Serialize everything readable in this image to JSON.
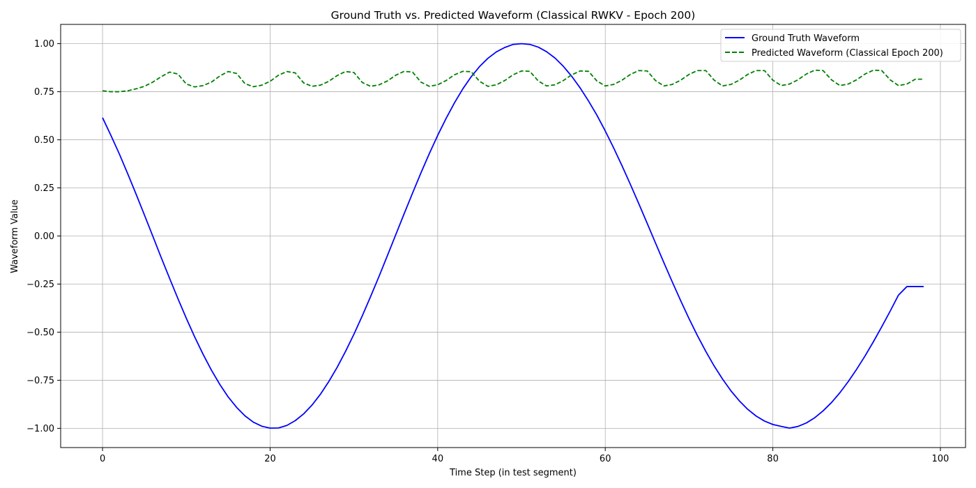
{
  "chart_data": {
    "type": "line",
    "title": "Ground Truth vs. Predicted Waveform (Classical RWKV - Epoch 200)",
    "xlabel": "Time Step (in test segment)",
    "ylabel": "Waveform Value",
    "xlim": [
      -5,
      103
    ],
    "ylim": [
      -1.1,
      1.1
    ],
    "xticks": [
      0,
      20,
      40,
      60,
      80,
      100
    ],
    "yticks": [
      -1.0,
      -0.75,
      -0.5,
      -0.25,
      0.0,
      0.25,
      0.5,
      0.75,
      1.0
    ],
    "xtick_labels": [
      "0",
      "20",
      "40",
      "60",
      "80",
      "100"
    ],
    "ytick_labels": [
      "−1.00",
      "−0.75",
      "−0.50",
      "−0.25",
      "0.00",
      "0.25",
      "0.50",
      "0.75",
      "1.00"
    ],
    "grid": true,
    "legend_position": "top-right",
    "series": [
      {
        "name": "Ground Truth Waveform",
        "color": "#0000ff",
        "style": "solid",
        "x": [
          0,
          1,
          2,
          3,
          4,
          5,
          6,
          7,
          8,
          9,
          10,
          11,
          12,
          13,
          14,
          15,
          16,
          17,
          18,
          19,
          20,
          21,
          22,
          23,
          24,
          25,
          26,
          27,
          28,
          29,
          30,
          31,
          32,
          33,
          34,
          35,
          36,
          37,
          38,
          39,
          40,
          41,
          42,
          43,
          44,
          45,
          46,
          47,
          48,
          49,
          50,
          51,
          52,
          53,
          54,
          55,
          56,
          57,
          58,
          59,
          60,
          61,
          62,
          63,
          64,
          65,
          66,
          67,
          68,
          69,
          70,
          71,
          72,
          73,
          74,
          75,
          76,
          77,
          78,
          79,
          80,
          81,
          82,
          83,
          84,
          85,
          86,
          87,
          88,
          89,
          90,
          91,
          92,
          93,
          94,
          95,
          96,
          97,
          98
        ],
        "y": [
          0.615,
          0.523,
          0.427,
          0.324,
          0.218,
          0.109,
          -0.001,
          -0.112,
          -0.22,
          -0.326,
          -0.428,
          -0.525,
          -0.615,
          -0.698,
          -0.772,
          -0.837,
          -0.891,
          -0.935,
          -0.968,
          -0.989,
          -0.999,
          -0.998,
          -0.985,
          -0.96,
          -0.925,
          -0.879,
          -0.823,
          -0.757,
          -0.683,
          -0.6,
          -0.511,
          -0.415,
          -0.314,
          -0.21,
          -0.102,
          0.007,
          0.116,
          0.223,
          0.328,
          0.428,
          0.523,
          0.611,
          0.692,
          0.765,
          0.828,
          0.881,
          0.924,
          0.957,
          0.98,
          0.996,
          1.0,
          0.996,
          0.982,
          0.958,
          0.925,
          0.882,
          0.83,
          0.77,
          0.702,
          0.628,
          0.546,
          0.458,
          0.365,
          0.268,
          0.168,
          0.066,
          -0.037,
          -0.139,
          -0.239,
          -0.336,
          -0.43,
          -0.518,
          -0.6,
          -0.676,
          -0.744,
          -0.805,
          -0.857,
          -0.901,
          -0.936,
          -0.962,
          -0.98,
          -0.99,
          -0.999,
          -0.99,
          -0.972,
          -0.945,
          -0.909,
          -0.866,
          -0.815,
          -0.757,
          -0.693,
          -0.624,
          -0.55,
          -0.472,
          -0.391,
          -0.307,
          -0.263,
          -0.263,
          -0.263
        ]
      },
      {
        "name": "Predicted Waveform (Classical Epoch 200)",
        "color": "#008000",
        "style": "dashed",
        "x": [
          0,
          1,
          2,
          3,
          4,
          5,
          6,
          7,
          8,
          9,
          10,
          11,
          12,
          13,
          14,
          15,
          16,
          17,
          18,
          19,
          20,
          21,
          22,
          23,
          24,
          25,
          26,
          27,
          28,
          29,
          30,
          31,
          32,
          33,
          34,
          35,
          36,
          37,
          38,
          39,
          40,
          41,
          42,
          43,
          44,
          45,
          46,
          47,
          48,
          49,
          50,
          51,
          52,
          53,
          54,
          55,
          56,
          57,
          58,
          59,
          60,
          61,
          62,
          63,
          64,
          65,
          66,
          67,
          68,
          69,
          70,
          71,
          72,
          73,
          74,
          75,
          76,
          77,
          78,
          79,
          80,
          81,
          82,
          83,
          84,
          85,
          86,
          87,
          88,
          89,
          90,
          91,
          92,
          93,
          94,
          95,
          96,
          97,
          98
        ],
        "y": [
          0.755,
          0.75,
          0.75,
          0.755,
          0.765,
          0.778,
          0.8,
          0.828,
          0.852,
          0.842,
          0.79,
          0.775,
          0.782,
          0.8,
          0.832,
          0.855,
          0.845,
          0.792,
          0.776,
          0.784,
          0.804,
          0.836,
          0.855,
          0.848,
          0.796,
          0.778,
          0.784,
          0.804,
          0.834,
          0.855,
          0.85,
          0.798,
          0.778,
          0.786,
          0.806,
          0.836,
          0.856,
          0.852,
          0.8,
          0.778,
          0.786,
          0.808,
          0.838,
          0.856,
          0.854,
          0.804,
          0.778,
          0.786,
          0.808,
          0.838,
          0.858,
          0.856,
          0.806,
          0.78,
          0.786,
          0.808,
          0.838,
          0.858,
          0.856,
          0.806,
          0.78,
          0.788,
          0.81,
          0.84,
          0.86,
          0.858,
          0.808,
          0.78,
          0.788,
          0.81,
          0.84,
          0.86,
          0.86,
          0.81,
          0.78,
          0.788,
          0.81,
          0.84,
          0.86,
          0.86,
          0.81,
          0.782,
          0.79,
          0.812,
          0.842,
          0.862,
          0.86,
          0.812,
          0.782,
          0.79,
          0.812,
          0.842,
          0.862,
          0.86,
          0.812,
          0.782,
          0.79,
          0.815,
          0.815
        ]
      }
    ]
  }
}
